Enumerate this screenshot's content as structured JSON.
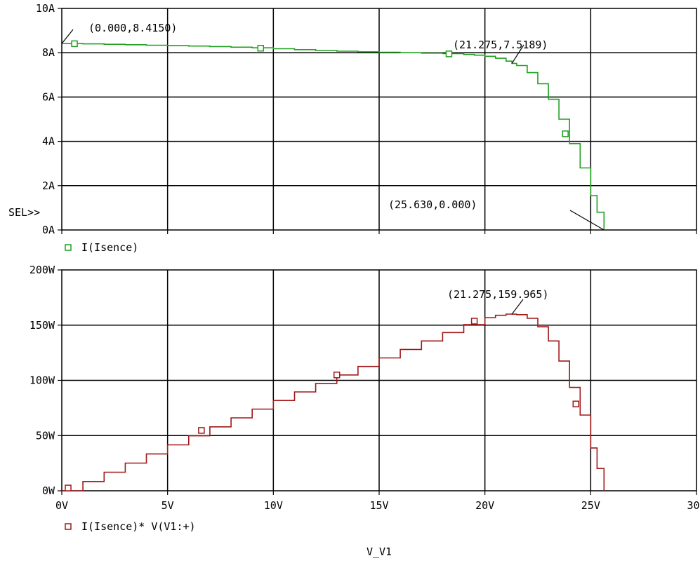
{
  "chart_data": [
    {
      "type": "line",
      "x_range": [
        0,
        30
      ],
      "y_ticks": [
        "0A",
        "2A",
        "4A",
        "6A",
        "8A",
        "10A"
      ],
      "ylim": [
        0,
        10
      ],
      "grid": true,
      "selector_label": "SEL>>",
      "legend": "I(Isence)",
      "series": [
        {
          "name": "I(Isence)",
          "color": "#1fa01f",
          "x": [
            0,
            1,
            2,
            3,
            4,
            5,
            6,
            7,
            8,
            9,
            10,
            11,
            12,
            13,
            14,
            15,
            16,
            17,
            18,
            19,
            19.5,
            20,
            20.5,
            21,
            21.275,
            21.5,
            22,
            22.5,
            23,
            23.5,
            24,
            24.5,
            25,
            25.3,
            25.63
          ],
          "y": [
            8.415,
            8.4,
            8.38,
            8.36,
            8.34,
            8.32,
            8.3,
            8.28,
            8.25,
            8.22,
            8.18,
            8.14,
            8.1,
            8.07,
            8.04,
            8.02,
            8.0,
            7.98,
            7.96,
            7.92,
            7.89,
            7.84,
            7.75,
            7.62,
            7.519,
            7.42,
            7.1,
            6.6,
            5.9,
            5.0,
            3.9,
            2.8,
            1.55,
            0.8,
            0.0
          ],
          "markers_x": [
            0.6,
            9.4,
            18.3,
            23.8
          ]
        }
      ],
      "annotations": [
        {
          "text": "(0.000,8.4150)",
          "x": 0.0,
          "y": 8.415
        },
        {
          "text": "(21.275,7.5189)",
          "x": 21.275,
          "y": 7.5189
        },
        {
          "text": "(25.630,0.000)",
          "x": 25.63,
          "y": 0.0
        }
      ]
    },
    {
      "type": "line",
      "x_range": [
        0,
        30
      ],
      "x_ticks": [
        "0V",
        "5V",
        "10V",
        "15V",
        "20V",
        "25V",
        "30V"
      ],
      "y_ticks": [
        "0W",
        "50W",
        "100W",
        "150W",
        "200W"
      ],
      "ylim": [
        0,
        200
      ],
      "grid": true,
      "legend": "I(Isence)* V(V1:+)",
      "xlabel": "V_V1",
      "series": [
        {
          "name": "I(Isence)* V(V1:+)",
          "color": "#a01818",
          "x": [
            0,
            1,
            2,
            3,
            4,
            5,
            6,
            7,
            8,
            9,
            10,
            11,
            12,
            13,
            14,
            15,
            16,
            17,
            18,
            19,
            20,
            20.5,
            21,
            21.275,
            21.5,
            22,
            22.5,
            23,
            23.5,
            24,
            24.5,
            25,
            25.3,
            25.63
          ],
          "y": [
            0,
            8.4,
            16.8,
            25.1,
            33.4,
            41.6,
            49.8,
            57.9,
            66.0,
            74.0,
            81.8,
            89.5,
            97.2,
            104.9,
            112.6,
            120.3,
            128.0,
            135.7,
            143.3,
            150.5,
            156.8,
            158.9,
            160.0,
            159.965,
            159.5,
            156.2,
            148.5,
            135.7,
            117.5,
            93.6,
            68.6,
            38.8,
            20.2,
            0
          ],
          "markers_x": [
            0.3,
            6.6,
            13.0,
            19.5,
            24.3
          ]
        }
      ],
      "annotations": [
        {
          "text": "(21.275,159.965)",
          "x": 21.275,
          "y": 159.965
        }
      ]
    }
  ]
}
